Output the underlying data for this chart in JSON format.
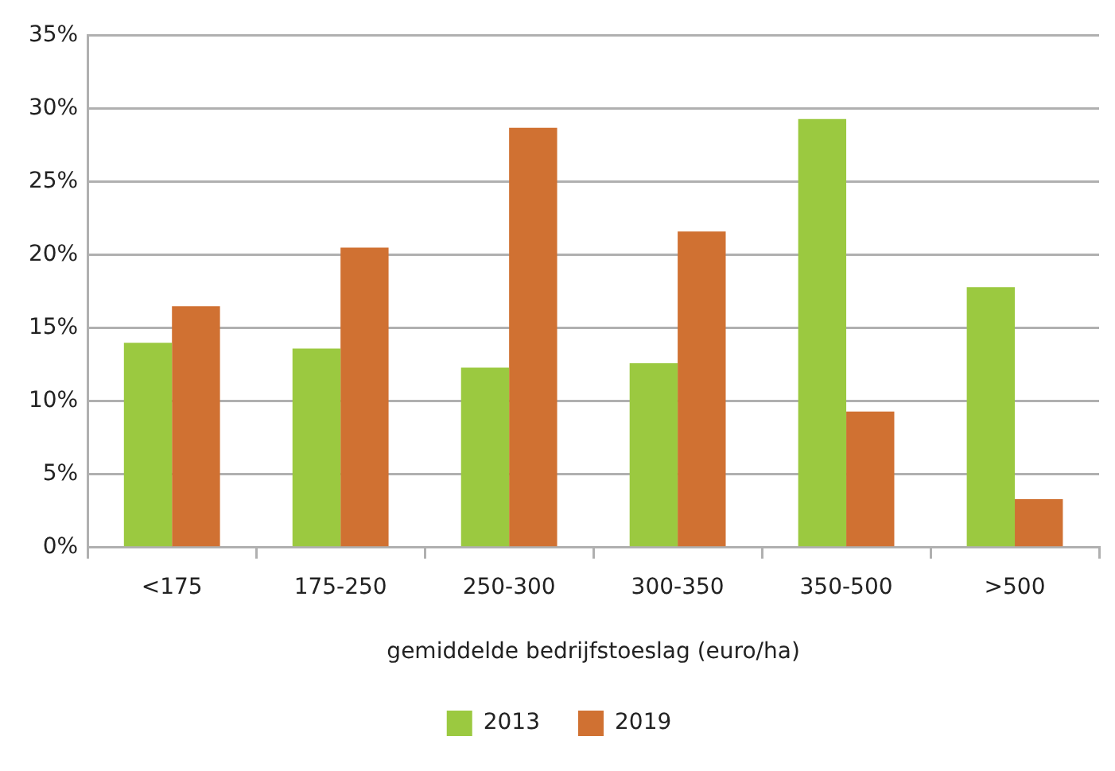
{
  "chart_data": {
    "type": "bar",
    "xlabel": "gemiddelde bedrijfstoeslag (euro/ha)",
    "categories": [
      "<175",
      "175-250",
      "250-300",
      "300-350",
      "350-500",
      ">500"
    ],
    "series": [
      {
        "name": "2013",
        "color": "#9bc940",
        "values": [
          14.0,
          13.6,
          12.3,
          12.6,
          29.3,
          17.8
        ]
      },
      {
        "name": "2019",
        "color": "#d07132",
        "values": [
          16.5,
          20.5,
          28.7,
          21.6,
          9.3,
          3.3
        ]
      }
    ],
    "ylim": [
      0,
      35
    ],
    "yticks": [
      {
        "value": 0,
        "label": "0%"
      },
      {
        "value": 5,
        "label": "5%"
      },
      {
        "value": 10,
        "label": "10%"
      },
      {
        "value": 15,
        "label": "15%"
      },
      {
        "value": 20,
        "label": "20%"
      },
      {
        "value": 25,
        "label": "25%"
      },
      {
        "value": 30,
        "label": "30%"
      },
      {
        "value": 35,
        "label": "35%"
      }
    ],
    "grid": "y",
    "legend": "bottom"
  }
}
